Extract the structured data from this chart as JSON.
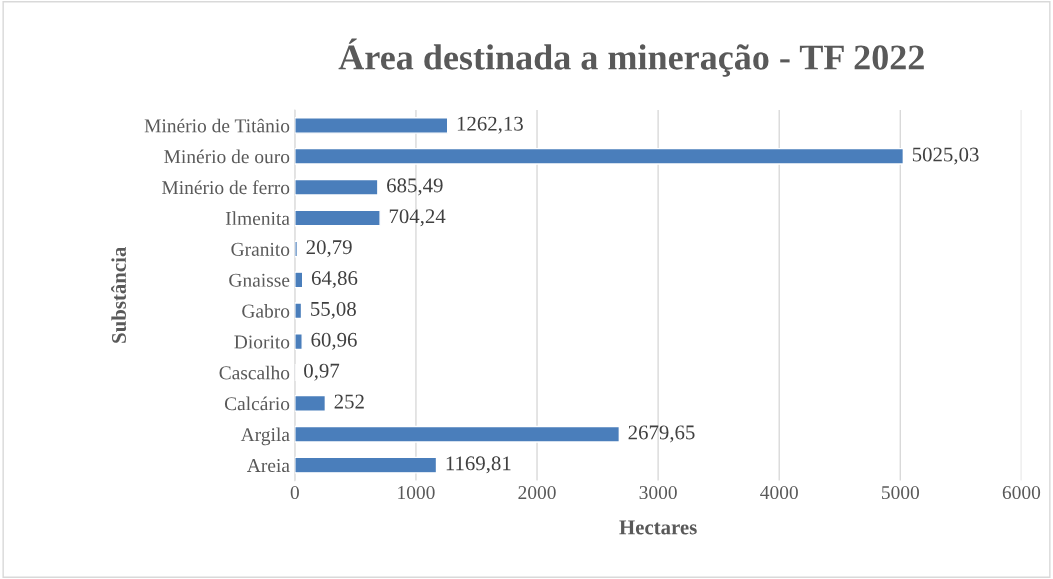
{
  "chart_data": {
    "type": "bar",
    "orientation": "horizontal",
    "title": "Área destinada a mineração - TF 2022",
    "xlabel": "Hectares",
    "ylabel": "Substância",
    "categories": [
      "Minério de Titânio",
      "Minério de ouro",
      "Minério de ferro",
      "Ilmenita",
      "Granito",
      "Gnaisse",
      "Gabro",
      "Diorito",
      "Cascalho",
      "Calcário",
      "Argila",
      "Areia"
    ],
    "values": [
      1262.13,
      5025.03,
      685.49,
      704.24,
      20.79,
      64.86,
      55.08,
      60.96,
      0.97,
      252,
      2679.65,
      1169.81
    ],
    "value_labels": [
      "1262,13",
      "5025,03",
      "685,49",
      "704,24",
      "20,79",
      "64,86",
      "55,08",
      "60,96",
      "0,97",
      "252",
      "2679,65",
      "1169,81"
    ],
    "color": "#4a7ebb",
    "xlim": [
      0,
      6000
    ],
    "xticks": [
      0,
      1000,
      2000,
      3000,
      4000,
      5000,
      6000
    ],
    "grid": "x"
  }
}
